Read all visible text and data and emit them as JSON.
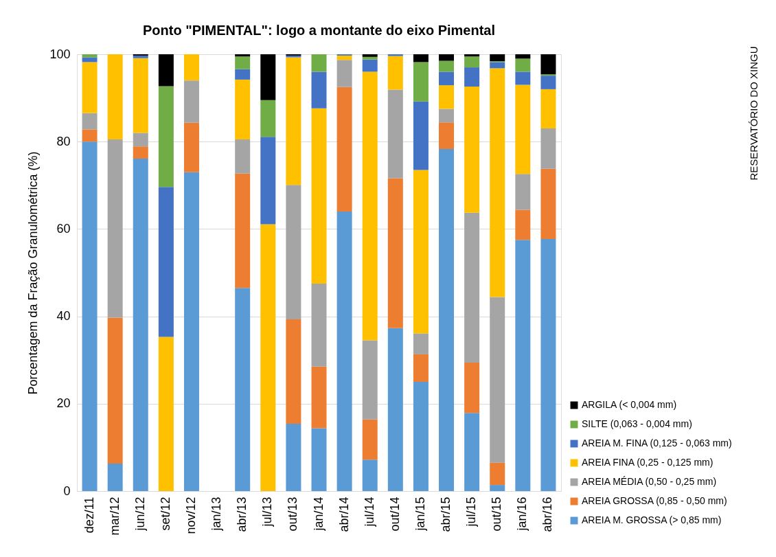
{
  "chart_data": {
    "type": "bar",
    "stacked": true,
    "title": "Ponto \"PIMENTAL\": logo a montante do eixo Pimental",
    "ylabel": "Porcentagem da Fração Granulométrica (%)",
    "annotations": [
      "RESERVATÓRIO DO XINGU"
    ],
    "categories": [
      "dez/11",
      "mar/12",
      "jun/12",
      "set/12",
      "nov/12",
      "jan/13",
      "abr/13",
      "jul/13",
      "out/13",
      "jan/14",
      "abr/14",
      "jul/14",
      "out/14",
      "jan/15",
      "abr/15",
      "jul/15",
      "out/15",
      "jan/16",
      "abr/16"
    ],
    "series": [
      {
        "name": "AREIA M. GROSSA (> 0,85 mm)",
        "color": "#5b9bd5",
        "values": [
          80,
          6.3,
          76.1,
          null,
          73,
          null,
          46.5,
          null,
          15.4,
          14.4,
          64,
          7.2,
          37.3,
          25,
          78.3,
          17.9,
          1.4,
          57.5,
          57.7
        ]
      },
      {
        "name": "AREIA GROSSA (0,85 - 0,50 mm)",
        "color": "#ed7d31",
        "values": [
          2.8,
          33.4,
          2.8,
          null,
          11.3,
          null,
          26.2,
          null,
          23.9,
          14.1,
          28.5,
          9.2,
          34.3,
          6.3,
          6.1,
          11.5,
          5.1,
          6.9,
          16.1
        ]
      },
      {
        "name": "AREIA MÉDIA (0,50 - 0,25 mm)",
        "color": "#a5a5a5",
        "values": [
          3.7,
          40.8,
          3.1,
          null,
          9.7,
          null,
          7.8,
          null,
          30.8,
          19,
          6.2,
          18.1,
          20.3,
          4.8,
          3.1,
          34.3,
          37.9,
          8.2,
          9.2
        ]
      },
      {
        "name": "AREIA FINA (0,25 - 0,125 mm)",
        "color": "#ffc000",
        "values": [
          11.7,
          19.5,
          17.1,
          35.3,
          6,
          null,
          13.7,
          61.1,
          29.2,
          40.1,
          1,
          61.5,
          7.7,
          37.4,
          5.4,
          28.9,
          52.4,
          20.4,
          9
        ]
      },
      {
        "name": "AREIA M. FINA (0,125 - 0,063 mm)",
        "color": "#4472c4",
        "values": [
          1.1,
          null,
          0.6,
          34.3,
          null,
          null,
          2.4,
          20,
          0.4,
          8.4,
          0.3,
          2.8,
          0.4,
          15.7,
          3.1,
          4.4,
          1.4,
          3,
          3.1
        ]
      },
      {
        "name": "SILTE (0,063 -  0,004 mm)",
        "color": "#70ad47",
        "values": [
          0.7,
          null,
          null,
          23.1,
          null,
          null,
          2.9,
          8.4,
          null,
          4,
          null,
          0.6,
          null,
          9,
          2.5,
          2.5,
          0.2,
          3,
          0.3
        ]
      },
      {
        "name": "ARGILA (< 0,004 mm)",
        "color": "#000000",
        "values": [
          null,
          null,
          0.3,
          7.3,
          null,
          null,
          0.5,
          10.5,
          0.3,
          null,
          null,
          0.6,
          null,
          1.8,
          1.5,
          0.5,
          1.6,
          1,
          4.6
        ]
      }
    ],
    "ylim": [
      0,
      100
    ],
    "yticks": [
      0,
      20,
      40,
      60,
      80,
      100
    ],
    "grid": "y",
    "legend": "bottom right"
  }
}
